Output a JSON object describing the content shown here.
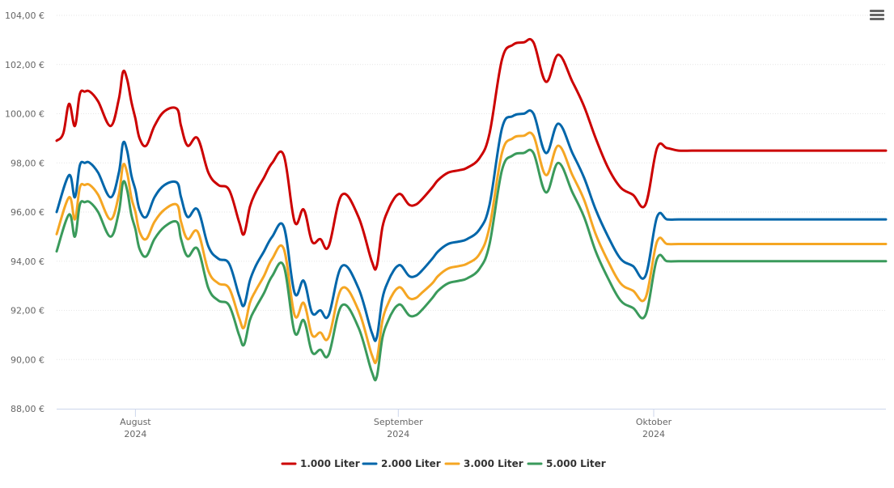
{
  "menu": {
    "icon": "hamburger-menu-icon"
  },
  "chart_data": {
    "type": "line",
    "title": "",
    "xlabel": "",
    "ylabel": "",
    "ylim": [
      88,
      104
    ],
    "yticks": [
      88,
      90,
      92,
      94,
      96,
      98,
      100,
      102,
      104
    ],
    "ytick_labels": [
      "88,00 €",
      "90,00 €",
      "92,00 €",
      "94,00 €",
      "96,00 €",
      "98,00 €",
      "100,00 €",
      "102,00 €",
      "104,00 €"
    ],
    "xlim": [
      0,
      100
    ],
    "xticks": [
      {
        "x": 9.5,
        "month": "August",
        "year": "2024"
      },
      {
        "x": 41.2,
        "month": "September",
        "year": "2024"
      },
      {
        "x": 72.0,
        "month": "Oktober",
        "year": "2024"
      }
    ],
    "legend_position": "bottom-center",
    "series": [
      {
        "name": "1.000 Liter",
        "color": "#cc0000",
        "x": [
          0,
          0.8,
          1.5,
          2.2,
          2.8,
          3.4,
          4.0,
          5.0,
          6.5,
          7.5,
          8.0,
          8.5,
          9.0,
          9.5,
          10.0,
          10.8,
          11.8,
          13.0,
          14.5,
          15.0,
          15.8,
          17.0,
          18.3,
          19.5,
          20.8,
          22.0,
          22.6,
          23.3,
          24.0,
          25.0,
          26.0,
          27.4,
          28.7,
          29.8,
          30.8,
          31.8,
          32.8,
          34.4,
          36.4,
          38.0,
          38.6,
          39.3,
          40.0,
          40.6,
          41.1,
          41.6,
          42.5,
          43.3,
          44.0,
          45.3,
          46.0,
          47.2,
          48.5,
          49.5,
          51.0,
          52.2,
          53.7,
          55.0,
          56.3,
          57.5,
          59.0,
          60.5,
          62.2,
          63.6,
          65.0,
          66.5,
          68.0,
          69.5,
          71.0,
          72.4,
          73.6,
          75.0,
          76.6,
          78.2,
          79.5,
          80.4,
          80.9,
          81.3,
          81.6,
          82.0,
          82.8,
          83.7,
          84.6,
          85.5,
          86.5,
          87.5,
          88.6,
          89.7,
          90.7,
          91.3,
          91.8,
          92.2,
          93.5,
          95.0,
          97.0,
          100
        ],
        "values": [
          98.9,
          99.2,
          100.4,
          99.5,
          100.8,
          100.9,
          100.9,
          100.5,
          99.5,
          100.6,
          101.7,
          101.4,
          100.5,
          99.8,
          99.0,
          98.7,
          99.5,
          100.1,
          100.2,
          99.5,
          98.7,
          99.0,
          97.6,
          97.1,
          96.9,
          95.6,
          95.1,
          96.2,
          96.8,
          97.4,
          98.0,
          98.3,
          95.6,
          96.1,
          94.8,
          94.9,
          94.6,
          96.7,
          95.8,
          94.0,
          93.8,
          95.4,
          96.1,
          96.5,
          96.7,
          96.7,
          96.3,
          96.3,
          96.5,
          97.0,
          97.3,
          97.6,
          97.7,
          97.8,
          98.2,
          99.2,
          102.2,
          102.8,
          102.9,
          102.9,
          101.3,
          102.4,
          101.3,
          100.3,
          99.0,
          97.8,
          97.0,
          96.7,
          96.3,
          98.6,
          98.6,
          98.5,
          98.5,
          98.5,
          98.5,
          98.5,
          98.5,
          98.5,
          98.5,
          98.5,
          98.5,
          98.5,
          98.5,
          98.5,
          98.5,
          98.5,
          98.5,
          98.5,
          98.5,
          98.5,
          98.5,
          98.5,
          98.5,
          98.5,
          98.5,
          98.5
        ]
      },
      {
        "name": "2.000 Liter",
        "color": "#0066aa",
        "x": [
          0,
          1.5,
          2.2,
          2.8,
          3.4,
          4.0,
          5.0,
          6.5,
          7.5,
          8.0,
          8.5,
          9.0,
          9.5,
          10.0,
          10.8,
          11.8,
          13.0,
          14.5,
          15.0,
          15.8,
          17.0,
          18.3,
          19.5,
          20.8,
          22.0,
          22.6,
          23.3,
          24.0,
          25.0,
          26.0,
          27.4,
          28.7,
          29.8,
          30.8,
          31.8,
          32.8,
          34.4,
          36.4,
          38.0,
          38.6,
          39.3,
          40.0,
          40.6,
          41.1,
          41.6,
          42.5,
          43.3,
          44.0,
          45.3,
          46.0,
          47.2,
          48.5,
          49.5,
          51.0,
          52.2,
          53.7,
          55.0,
          56.3,
          57.5,
          59.0,
          60.5,
          62.2,
          63.6,
          65.0,
          66.5,
          68.0,
          69.5,
          71.0,
          72.4,
          73.6,
          75.0,
          76.6,
          78.2,
          79.5,
          80.4,
          80.9,
          81.3,
          81.6,
          82.0,
          82.8,
          83.7,
          84.6,
          85.5,
          86.5,
          87.5,
          88.6,
          89.7,
          90.7,
          91.3,
          91.8,
          92.2,
          93.5,
          95.0,
          97.0,
          100
        ],
        "values": [
          96.0,
          97.5,
          96.6,
          97.9,
          98.0,
          98.0,
          97.6,
          96.6,
          97.6,
          98.8,
          98.5,
          97.5,
          96.9,
          96.1,
          95.8,
          96.6,
          97.1,
          97.2,
          96.6,
          95.8,
          96.1,
          94.6,
          94.1,
          93.9,
          92.6,
          92.2,
          93.2,
          93.8,
          94.4,
          95.0,
          95.4,
          92.7,
          93.2,
          91.9,
          92.0,
          91.8,
          93.8,
          92.9,
          91.1,
          90.9,
          92.5,
          93.2,
          93.6,
          93.8,
          93.8,
          93.4,
          93.4,
          93.6,
          94.1,
          94.4,
          94.7,
          94.8,
          94.9,
          95.3,
          96.3,
          99.4,
          99.9,
          100.0,
          100.0,
          98.4,
          99.6,
          98.4,
          97.4,
          96.1,
          95.0,
          94.1,
          93.8,
          93.4,
          95.8,
          95.7,
          95.7,
          95.7,
          95.7,
          95.7,
          95.7,
          95.7,
          95.7,
          95.7,
          95.7,
          95.7,
          95.7,
          95.7,
          95.7,
          95.7,
          95.7,
          95.7,
          95.7,
          95.7,
          95.7,
          95.7,
          95.7,
          95.7,
          95.7,
          95.7,
          95.7
        ]
      },
      {
        "name": "3.000 Liter",
        "color": "#f5a623",
        "x": [
          0,
          1.5,
          2.2,
          2.8,
          3.4,
          4.0,
          5.0,
          6.5,
          7.5,
          8.0,
          8.5,
          9.0,
          9.5,
          10.0,
          10.8,
          11.8,
          13.0,
          14.5,
          15.0,
          15.8,
          17.0,
          18.3,
          19.5,
          20.8,
          22.0,
          22.6,
          23.3,
          24.0,
          25.0,
          26.0,
          27.4,
          28.7,
          29.8,
          30.8,
          31.8,
          32.8,
          34.4,
          36.4,
          38.0,
          38.6,
          39.3,
          40.0,
          40.6,
          41.1,
          41.6,
          42.5,
          43.3,
          44.0,
          45.3,
          46.0,
          47.2,
          48.5,
          49.5,
          51.0,
          52.2,
          53.7,
          55.0,
          56.3,
          57.5,
          59.0,
          60.5,
          62.2,
          63.6,
          65.0,
          66.5,
          68.0,
          69.5,
          71.0,
          72.4,
          73.6,
          75.0,
          76.6,
          78.2,
          79.5,
          80.4,
          80.9,
          81.3,
          81.6,
          82.0,
          82.8,
          83.7,
          84.6,
          85.5,
          86.5,
          87.5,
          88.6,
          89.7,
          90.7,
          91.3,
          91.8,
          92.2,
          93.5,
          95.0,
          97.0,
          100
        ],
        "values": [
          95.1,
          96.6,
          95.7,
          97.0,
          97.1,
          97.1,
          96.7,
          95.7,
          96.7,
          97.9,
          97.6,
          96.6,
          96.0,
          95.2,
          94.9,
          95.6,
          96.1,
          96.3,
          95.6,
          94.9,
          95.2,
          93.6,
          93.1,
          92.9,
          91.7,
          91.3,
          92.3,
          92.8,
          93.4,
          94.1,
          94.5,
          91.8,
          92.3,
          91.0,
          91.1,
          90.9,
          92.9,
          92.0,
          90.2,
          90.0,
          91.6,
          92.3,
          92.7,
          92.9,
          92.9,
          92.5,
          92.5,
          92.7,
          93.1,
          93.4,
          93.7,
          93.8,
          93.9,
          94.3,
          95.4,
          98.4,
          99.0,
          99.1,
          99.1,
          97.5,
          98.7,
          97.5,
          96.5,
          95.1,
          94.0,
          93.1,
          92.8,
          92.5,
          94.8,
          94.7,
          94.7,
          94.7,
          94.7,
          94.7,
          94.7,
          94.7,
          94.7,
          94.7,
          94.7,
          94.7,
          94.7,
          94.7,
          94.7,
          94.7,
          94.7,
          94.7,
          94.7,
          94.7,
          94.7,
          94.7,
          94.7,
          94.7,
          94.7,
          94.7,
          94.7
        ]
      },
      {
        "name": "5.000 Liter",
        "color": "#3a9a5b",
        "x": [
          0,
          1.5,
          2.2,
          2.8,
          3.4,
          4.0,
          5.0,
          6.5,
          7.5,
          8.0,
          8.5,
          9.0,
          9.5,
          10.0,
          10.8,
          11.8,
          13.0,
          14.5,
          15.0,
          15.8,
          17.0,
          18.3,
          19.5,
          20.8,
          22.0,
          22.6,
          23.3,
          24.0,
          25.0,
          26.0,
          27.4,
          28.7,
          29.8,
          30.8,
          31.8,
          32.8,
          34.4,
          36.4,
          38.0,
          38.6,
          39.3,
          40.0,
          40.6,
          41.1,
          41.6,
          42.5,
          43.3,
          44.0,
          45.3,
          46.0,
          47.2,
          48.5,
          49.5,
          51.0,
          52.2,
          53.7,
          55.0,
          56.3,
          57.5,
          59.0,
          60.5,
          62.2,
          63.6,
          65.0,
          66.5,
          68.0,
          69.5,
          71.0,
          72.4,
          73.6,
          75.0,
          76.6,
          78.2,
          79.5,
          80.4,
          80.9,
          81.3,
          81.6,
          82.0,
          82.8,
          83.7,
          84.6,
          85.5,
          86.5,
          87.5,
          88.6,
          89.7,
          90.7,
          91.3,
          91.8,
          92.2,
          93.5,
          95.0,
          97.0,
          100
        ],
        "values": [
          94.4,
          95.9,
          95.0,
          96.3,
          96.4,
          96.4,
          96.0,
          95.0,
          96.0,
          97.2,
          96.9,
          95.9,
          95.3,
          94.5,
          94.2,
          94.9,
          95.4,
          95.6,
          94.9,
          94.2,
          94.5,
          92.9,
          92.4,
          92.2,
          91.0,
          90.6,
          91.6,
          92.1,
          92.7,
          93.4,
          93.8,
          91.1,
          91.6,
          90.3,
          90.4,
          90.2,
          92.2,
          91.3,
          89.5,
          89.3,
          90.9,
          91.6,
          92.0,
          92.2,
          92.2,
          91.8,
          91.8,
          92.0,
          92.5,
          92.8,
          93.1,
          93.2,
          93.3,
          93.7,
          94.7,
          97.7,
          98.3,
          98.4,
          98.4,
          96.8,
          98.0,
          96.8,
          95.8,
          94.4,
          93.3,
          92.4,
          92.1,
          91.8,
          94.1,
          94.0,
          94.0,
          94.0,
          94.0,
          94.0,
          94.0,
          94.0,
          94.0,
          94.0,
          94.0,
          94.0,
          94.0,
          94.0,
          94.0,
          94.0,
          94.0,
          94.0,
          94.0,
          94.0,
          94.0,
          94.0,
          94.0,
          94.0,
          94.0,
          94.0,
          94.0
        ]
      }
    ]
  }
}
